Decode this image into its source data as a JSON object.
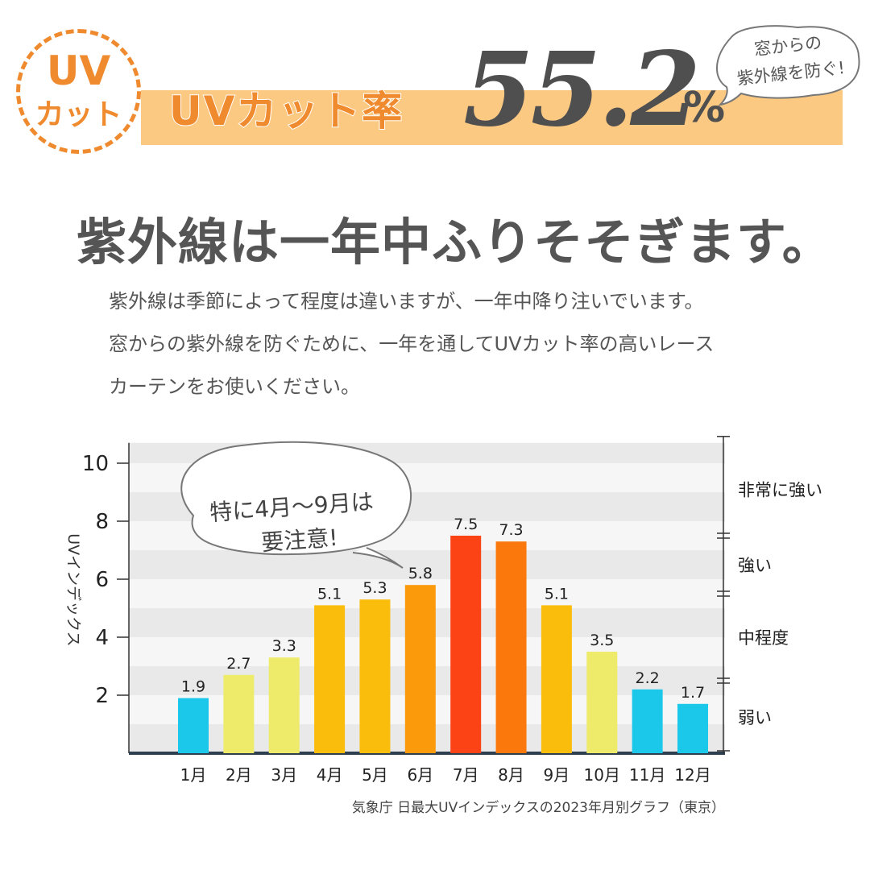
{
  "header": {
    "badge_top": "UV",
    "badge_bottom": "カット",
    "cut_label": "UVカット率",
    "rate_value": "55.2",
    "rate_unit": "%",
    "callout_line1": "窓からの",
    "callout_line2": "紫外線を防ぐ!",
    "accent_color": "#ef8a2e",
    "band_color": "#fcc982"
  },
  "headline": "紫外線は一年中ふりそそぎます。",
  "body": {
    "line1": "紫外線は季節によって程度は違いますが、一年中降り注いでいます。",
    "line2": "窓からの紫外線を防ぐために、一年を通してUVカット率の高いレース",
    "line3": "カーテンをお使いください。"
  },
  "chart_data": {
    "type": "bar",
    "categories": [
      "1月",
      "2月",
      "3月",
      "4月",
      "5月",
      "6月",
      "7月",
      "8月",
      "9月",
      "10月",
      "11月",
      "12月"
    ],
    "values": [
      1.9,
      2.7,
      3.3,
      5.1,
      5.3,
      5.8,
      7.5,
      7.3,
      5.1,
      3.5,
      2.2,
      1.7
    ],
    "bar_colors": [
      "#1cc8ea",
      "#eeea6a",
      "#eeea6a",
      "#fbbd0b",
      "#fbbd0b",
      "#fb9a0b",
      "#fc4316",
      "#fb790c",
      "#fbbd0b",
      "#eeea6a",
      "#1cc8ea",
      "#1cc8ea"
    ],
    "ylabel": "UVインデックス",
    "yticks": [
      2,
      4,
      6,
      8,
      10
    ],
    "ylim": [
      0,
      10.7
    ],
    "grid": "horizontal-bands",
    "categories_right": [
      {
        "label": "弱い",
        "from": 0,
        "to": 2.5
      },
      {
        "label": "中程度",
        "from": 2.5,
        "to": 5.5
      },
      {
        "label": "強い",
        "from": 5.5,
        "to": 7.5
      },
      {
        "label": "非常に強い",
        "from": 7.5,
        "to": 10.7
      }
    ],
    "annotation": {
      "line1": "特に4月～9月は",
      "line2": "要注意!"
    },
    "source": "気象庁 日最大UVインデックスの2023年月別グラフ（東京）"
  }
}
